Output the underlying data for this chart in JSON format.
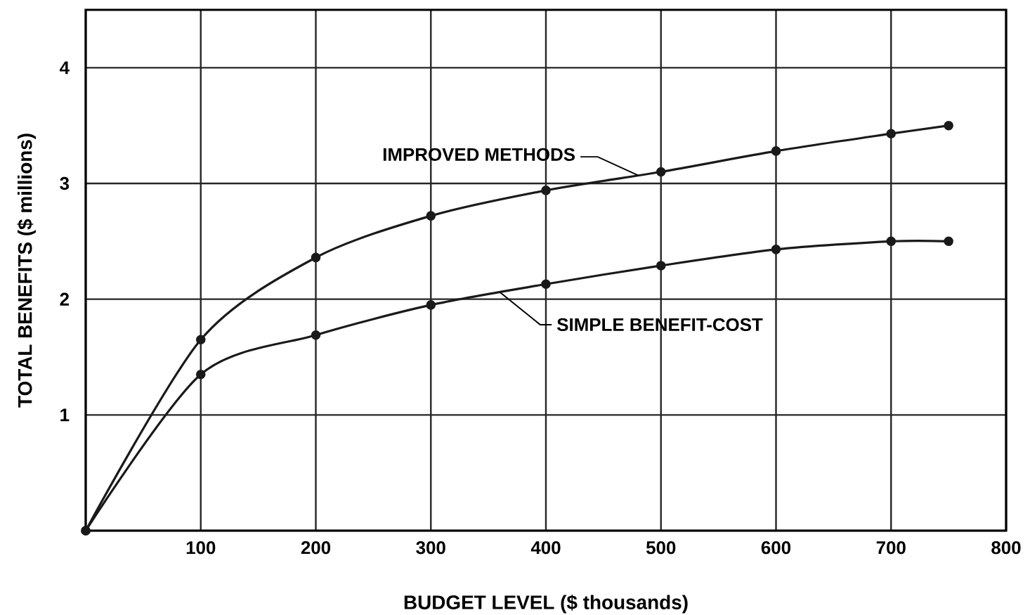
{
  "chart_data": {
    "type": "line",
    "xlabel": "BUDGET LEVEL ($ thousands)",
    "ylabel": "TOTAL BENEFITS ($ millions)",
    "x": [
      0,
      100,
      200,
      300,
      400,
      500,
      600,
      700,
      750
    ],
    "series": [
      {
        "name": "IMPROVED METHODS",
        "color": "#1a1a1a",
        "values": [
          0,
          1.65,
          2.36,
          2.72,
          2.94,
          3.1,
          3.28,
          3.43,
          3.5
        ]
      },
      {
        "name": "SIMPLE BENEFIT-COST",
        "color": "#1a1a1a",
        "values": [
          0,
          1.35,
          1.69,
          1.95,
          2.13,
          2.29,
          2.43,
          2.5,
          2.5
        ]
      }
    ],
    "xlim": [
      0,
      800
    ],
    "ylim": [
      0,
      4.5
    ],
    "xticks": [
      {
        "value": 0,
        "label": null
      },
      100,
      200,
      300,
      400,
      500,
      600,
      700,
      800
    ],
    "yticks": [
      {
        "value": 0,
        "label": null
      },
      1,
      2,
      3,
      4
    ],
    "grid": true,
    "legend": false,
    "marker": "circle",
    "line_style": "solid"
  }
}
